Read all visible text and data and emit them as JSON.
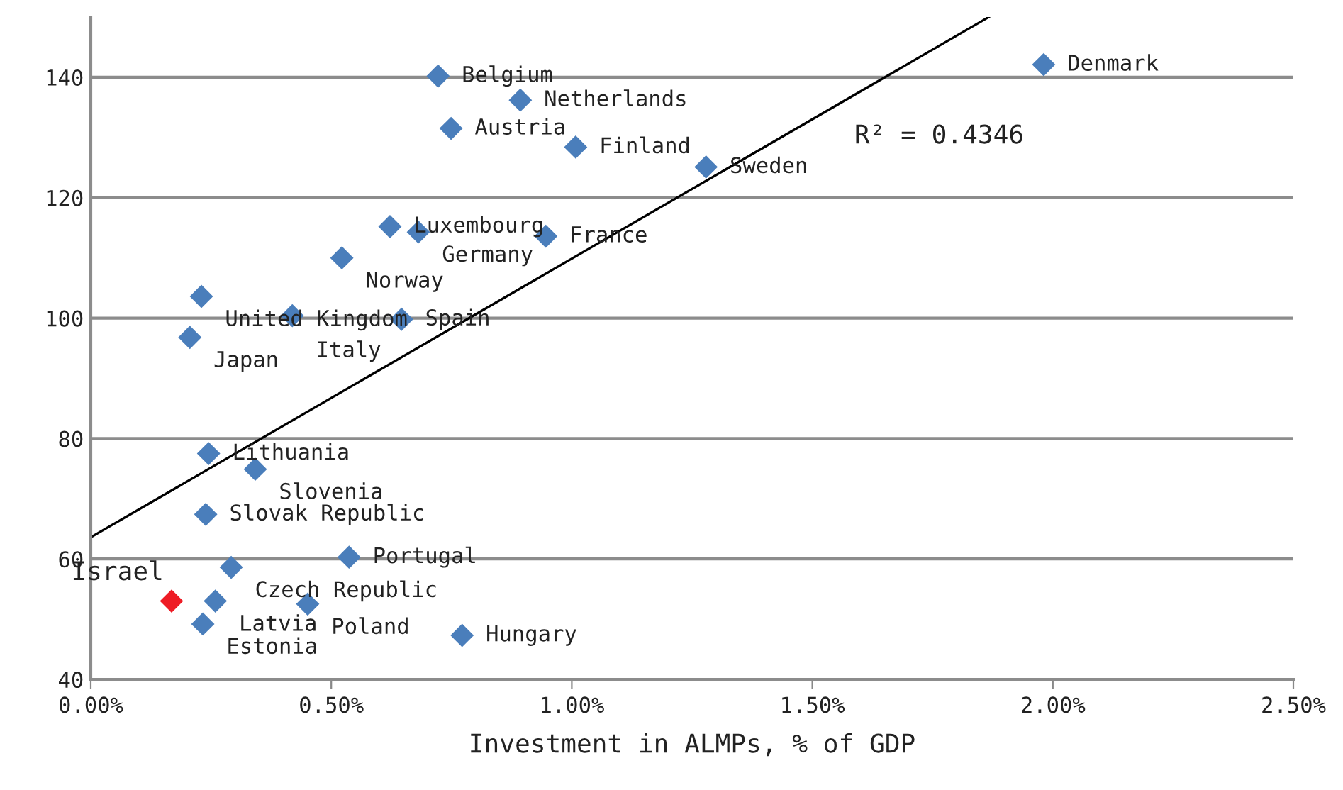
{
  "chart_data": {
    "type": "scatter",
    "xlabel": "Investment in ALMPs, % of GDP",
    "xlim": [
      0,
      2.5
    ],
    "xticks": [
      {
        "value": 0,
        "label": "0.00%"
      },
      {
        "value": 0.5,
        "label": "0.50%"
      },
      {
        "value": 1.0,
        "label": "1.00%"
      },
      {
        "value": 1.5,
        "label": "1.50%"
      },
      {
        "value": 2.0,
        "label": "2.00%"
      },
      {
        "value": 2.5,
        "label": "2.50%"
      }
    ],
    "ylim": [
      40,
      150
    ],
    "yticks": [
      40,
      60,
      80,
      100,
      120,
      140
    ],
    "grid": "y",
    "marker": "diamond",
    "series": [
      {
        "x": [
          0.722,
          0.893,
          0.749,
          1.008,
          1.279,
          1.981,
          0.622,
          0.681,
          0.946,
          0.522,
          0.23,
          0.419,
          0.646,
          0.206,
          0.245,
          0.342,
          0.239,
          0.537,
          0.292,
          0.259,
          0.451,
          0.233,
          0.772
        ],
        "values": [
          140.2,
          136.2,
          131.5,
          128.4,
          125.1,
          142.1,
          115.2,
          114.3,
          113.6,
          110.0,
          103.6,
          100.4,
          99.8,
          96.8,
          77.5,
          74.9,
          67.4,
          60.3,
          58.6,
          53.0,
          52.5,
          49.2,
          47.3
        ],
        "color": "#4a7ebb"
      },
      {
        "name": "Israel",
        "x": [
          0.168
        ],
        "values": [
          53.0
        ],
        "color": "#ee1c25"
      },
      {
        "type": "line",
        "x": [
          0,
          1.867
        ],
        "values": [
          63.6,
          150.0
        ],
        "color": "#000000",
        "marker": "none"
      }
    ],
    "annotations": [
      {
        "text": "Belgium",
        "x": 0.722,
        "y": 140.2
      },
      {
        "text": "Netherlands",
        "x": 0.893,
        "y": 136.2
      },
      {
        "text": "Austria",
        "x": 0.749,
        "y": 131.5
      },
      {
        "text": "Finland",
        "x": 1.008,
        "y": 128.4
      },
      {
        "text": "Sweden",
        "x": 1.279,
        "y": 125.1
      },
      {
        "text": "Denmark",
        "x": 1.981,
        "y": 142.1
      },
      {
        "text": "Luxembourg",
        "x": 0.622,
        "y": 115.2
      },
      {
        "text": "Germany",
        "x": 0.681,
        "y": 114.3
      },
      {
        "text": "France",
        "x": 0.946,
        "y": 113.6
      },
      {
        "text": "Norway",
        "x": 0.522,
        "y": 110.0
      },
      {
        "text": "United Kingdom",
        "x": 0.23,
        "y": 103.6
      },
      {
        "text": "Italy",
        "x": 0.419,
        "y": 100.4
      },
      {
        "text": "Spain",
        "x": 0.646,
        "y": 99.8
      },
      {
        "text": "Japan",
        "x": 0.206,
        "y": 96.8
      },
      {
        "text": "Lithuania",
        "x": 0.245,
        "y": 77.5
      },
      {
        "text": "Slovenia",
        "x": 0.342,
        "y": 74.9
      },
      {
        "text": "Slovak Republic",
        "x": 0.239,
        "y": 67.4
      },
      {
        "text": "Portugal",
        "x": 0.537,
        "y": 60.3
      },
      {
        "text": "Czech Republic",
        "x": 0.292,
        "y": 58.6
      },
      {
        "text": "Latvia",
        "x": 0.259,
        "y": 53.0
      },
      {
        "text": "Poland",
        "x": 0.451,
        "y": 52.5
      },
      {
        "text": "Estonia",
        "x": 0.233,
        "y": 49.2
      },
      {
        "text": "Hungary",
        "x": 0.772,
        "y": 47.3
      },
      "R² = 0.4346"
    ]
  }
}
